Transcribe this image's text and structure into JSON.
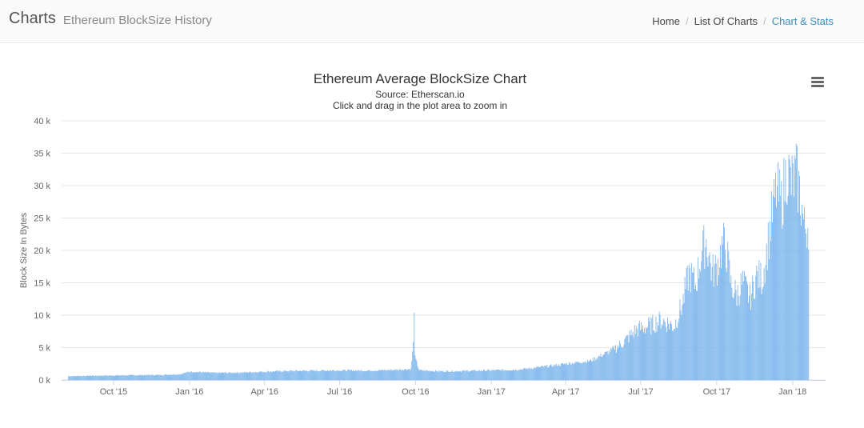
{
  "header": {
    "brand": "Charts",
    "subtitle": "Ethereum BlockSize History",
    "breadcrumbs": [
      {
        "label": "Home",
        "active": false
      },
      {
        "label": "List Of Charts",
        "active": false
      },
      {
        "label": "Chart & Stats",
        "active": true
      }
    ],
    "separator": "/"
  },
  "menu_icon": "hamburger-menu-icon",
  "chart_data": {
    "type": "bar",
    "title": "Ethereum Average BlockSize Chart",
    "subtitle": "Source: Etherscan.io",
    "subtitle2": "Click and drag in the plot area to zoom in",
    "ylabel": "Block Size In Bytes",
    "xlabel": "",
    "ylim": [
      0,
      40000
    ],
    "yticks": [
      0,
      5000,
      10000,
      15000,
      20000,
      25000,
      30000,
      35000,
      40000
    ],
    "ytick_labels": [
      "0 k",
      "5 k",
      "10 k",
      "15 k",
      "20 k",
      "25 k",
      "30 k",
      "35 k",
      "40 k"
    ],
    "xlim": [
      "2015-07-30",
      "2018-02-10"
    ],
    "xticks": [
      "2015-10-01",
      "2016-01-01",
      "2016-04-01",
      "2016-07-01",
      "2016-10-01",
      "2017-01-01",
      "2017-04-01",
      "2017-07-01",
      "2017-10-01",
      "2018-01-01"
    ],
    "xtick_labels": [
      "Oct '15",
      "Jan '16",
      "Apr '16",
      "Jul '16",
      "Oct '16",
      "Jan '17",
      "Apr '17",
      "Jul '17",
      "Oct '17",
      "Jan '18"
    ],
    "grid": true,
    "legend": "none",
    "bar_color": "#7cb5ec",
    "series": [
      {
        "values_note": "",
        "points": [
          [
            "2015-08-07",
            600
          ],
          [
            "2015-08-31",
            650
          ],
          [
            "2015-10-01",
            700
          ],
          [
            "2015-11-01",
            750
          ],
          [
            "2015-12-01",
            800
          ],
          [
            "2015-12-20",
            900
          ],
          [
            "2016-01-01",
            1300
          ],
          [
            "2016-02-01",
            1100
          ],
          [
            "2016-03-01",
            1150
          ],
          [
            "2016-04-01",
            1300
          ],
          [
            "2016-05-01",
            1400
          ],
          [
            "2016-06-01",
            1450
          ],
          [
            "2016-07-01",
            1500
          ],
          [
            "2016-08-01",
            1450
          ],
          [
            "2016-09-01",
            1550
          ],
          [
            "2016-09-25",
            1700
          ],
          [
            "2016-09-28",
            5500
          ],
          [
            "2016-09-29",
            12500
          ],
          [
            "2016-09-30",
            3500
          ],
          [
            "2016-10-05",
            1500
          ],
          [
            "2016-11-01",
            1350
          ],
          [
            "2016-12-01",
            1400
          ],
          [
            "2017-01-01",
            1500
          ],
          [
            "2017-02-01",
            1600
          ],
          [
            "2017-03-01",
            2000
          ],
          [
            "2017-04-01",
            2500
          ],
          [
            "2017-05-01",
            3000
          ],
          [
            "2017-05-25",
            4500
          ],
          [
            "2017-06-10",
            6000
          ],
          [
            "2017-06-25",
            8000
          ],
          [
            "2017-07-10",
            8500
          ],
          [
            "2017-07-25",
            9500
          ],
          [
            "2017-08-10",
            8500
          ],
          [
            "2017-08-20",
            12000
          ],
          [
            "2017-08-28",
            17000
          ],
          [
            "2017-09-05",
            15000
          ],
          [
            "2017-09-12",
            20000
          ],
          [
            "2017-09-18",
            22000
          ],
          [
            "2017-09-25",
            17000
          ],
          [
            "2017-10-01",
            18000
          ],
          [
            "2017-10-08",
            21500
          ],
          [
            "2017-10-12",
            21000
          ],
          [
            "2017-10-18",
            15000
          ],
          [
            "2017-10-25",
            13500
          ],
          [
            "2017-11-01",
            15500
          ],
          [
            "2017-11-10",
            13000
          ],
          [
            "2017-11-18",
            16500
          ],
          [
            "2017-11-25",
            16000
          ],
          [
            "2017-12-01",
            21000
          ],
          [
            "2017-12-06",
            25500
          ],
          [
            "2017-12-12",
            30000
          ],
          [
            "2017-12-18",
            28000
          ],
          [
            "2017-12-25",
            33500
          ],
          [
            "2017-12-30",
            31000
          ],
          [
            "2018-01-05",
            32500
          ],
          [
            "2018-01-10",
            29000
          ],
          [
            "2018-01-15",
            24000
          ],
          [
            "2018-01-20",
            25000
          ]
        ]
      }
    ]
  }
}
